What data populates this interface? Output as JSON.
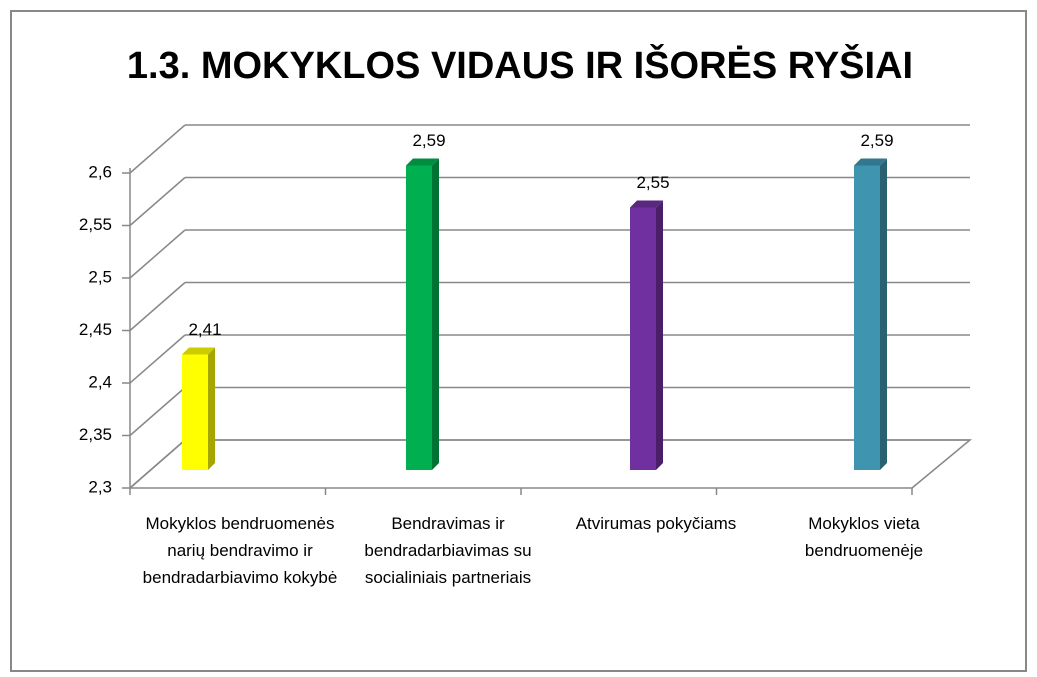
{
  "chart_data": {
    "type": "bar3d",
    "title": "1.3. MOKYKLOS VIDAUS IR IŠORĖS RYŠIAI",
    "categories": [
      "Mokyklos bendruomenės narių bendravimo ir bendradarbiavimo kokybė",
      "Bendravimas ir bendradarbiavimas su socialiniais partneriais",
      "Atvirumas pokyčiams",
      "Mokyklos vieta bendruomenėje"
    ],
    "values": [
      2.41,
      2.59,
      2.55,
      2.59
    ],
    "value_labels": [
      "2,41",
      "2,59",
      "2,55",
      "2,59"
    ],
    "colors": [
      "#ffff00",
      "#00b050",
      "#7030a0",
      "#3f95b0"
    ],
    "ylim": [
      2.3,
      2.6
    ],
    "yticks": [
      {
        "value": 2.3,
        "label": "2,3"
      },
      {
        "value": 2.35,
        "label": "2,35"
      },
      {
        "value": 2.4,
        "label": "2,4"
      },
      {
        "value": 2.45,
        "label": "2,45"
      },
      {
        "value": 2.5,
        "label": "2,5"
      },
      {
        "value": 2.55,
        "label": "2,55"
      },
      {
        "value": 2.6,
        "label": "2,6"
      }
    ],
    "grid": true
  }
}
